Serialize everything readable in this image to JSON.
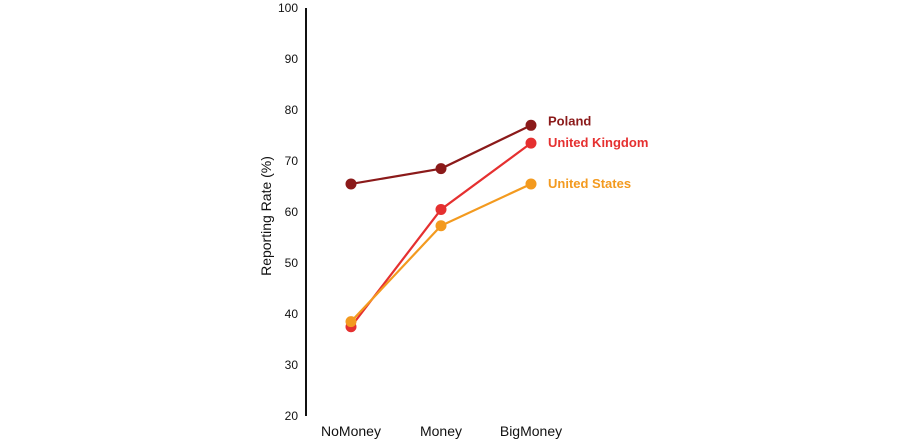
{
  "chart_data": {
    "type": "line",
    "title": "",
    "xlabel": "",
    "ylabel": "Reporting Rate (%)",
    "categories": [
      "NoMoney",
      "Money",
      "BigMoney"
    ],
    "ylim": [
      20,
      100
    ],
    "yticks": [
      20,
      30,
      40,
      50,
      60,
      70,
      80,
      90,
      100
    ],
    "grid": false,
    "legend": "inline labels at line ends (right)",
    "series": [
      {
        "name": "Poland",
        "color": "#8b1a1a",
        "values": [
          65.5,
          68.5,
          77
        ]
      },
      {
        "name": "United Kingdom",
        "color": "#e53030",
        "values": [
          37.5,
          60.5,
          73.5
        ]
      },
      {
        "name": "United States",
        "color": "#f39a1f",
        "values": [
          38.5,
          57.3,
          65.5
        ]
      }
    ]
  }
}
